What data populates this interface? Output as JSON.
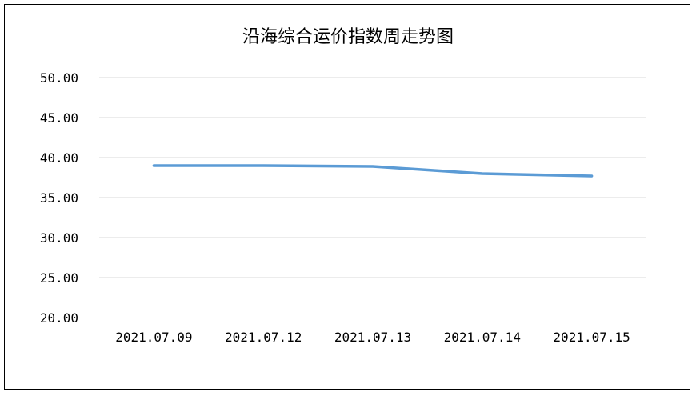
{
  "chart_data": {
    "type": "line",
    "title": "沿海综合运价指数周走势图",
    "categories": [
      "2021.07.09",
      "2021.07.12",
      "2021.07.13",
      "2021.07.14",
      "2021.07.15"
    ],
    "series": [
      {
        "values": [
          39.0,
          39.0,
          38.9,
          38.0,
          37.7
        ]
      }
    ],
    "ylim": [
      20,
      50
    ],
    "yticks": [
      "20.00",
      "25.00",
      "30.00",
      "35.00",
      "40.00",
      "45.00",
      "50.00"
    ],
    "grid": true,
    "line_color": "#5b9bd5",
    "grid_color": "#d9d9d9"
  }
}
